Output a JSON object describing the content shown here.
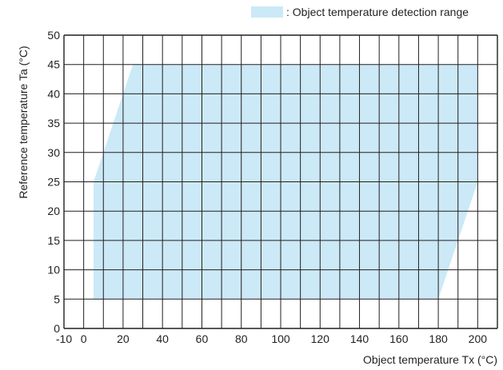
{
  "chart_data": {
    "type": "area",
    "title": "",
    "xlabel": "Object temperature Tx (°C)",
    "ylabel": "Reference temperature Ta (°C)",
    "xlim": [
      -10,
      210
    ],
    "ylim": [
      0,
      50
    ],
    "xticks": [
      -10,
      0,
      20,
      40,
      60,
      80,
      100,
      120,
      140,
      160,
      180,
      200
    ],
    "yticks": [
      0,
      5,
      10,
      15,
      20,
      25,
      30,
      35,
      40,
      45,
      50
    ],
    "grid_x_step": 10,
    "grid_y_step": 5,
    "grid": true,
    "legend_position": "top-right",
    "series": [
      {
        "name": ": Object temperature detection range",
        "color": "#cce9f7",
        "polygon_x": [
          5,
          5,
          25,
          200,
          200,
          180
        ],
        "polygon_y": [
          5,
          25,
          45,
          45,
          25,
          5
        ]
      }
    ]
  },
  "colors": {
    "region_fill": "#cce9f7",
    "grid": "#231f20",
    "text": "#231f20"
  }
}
